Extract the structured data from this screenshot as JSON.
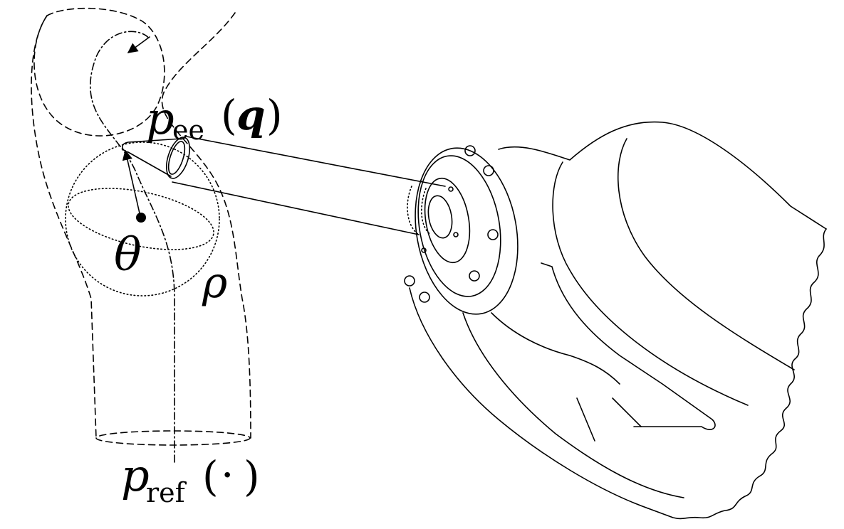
{
  "labels": {
    "end_effector": {
      "symbol": "p",
      "subscript": "ee",
      "open": "(",
      "argument": "q",
      "close": ")"
    },
    "reference": {
      "symbol": "p",
      "subscript": "ref",
      "open": "(",
      "argument": "·",
      "close": ")"
    },
    "theta": "θ",
    "rho": "ρ"
  },
  "colors": {
    "ink": "#000000",
    "background": "#ffffff"
  }
}
